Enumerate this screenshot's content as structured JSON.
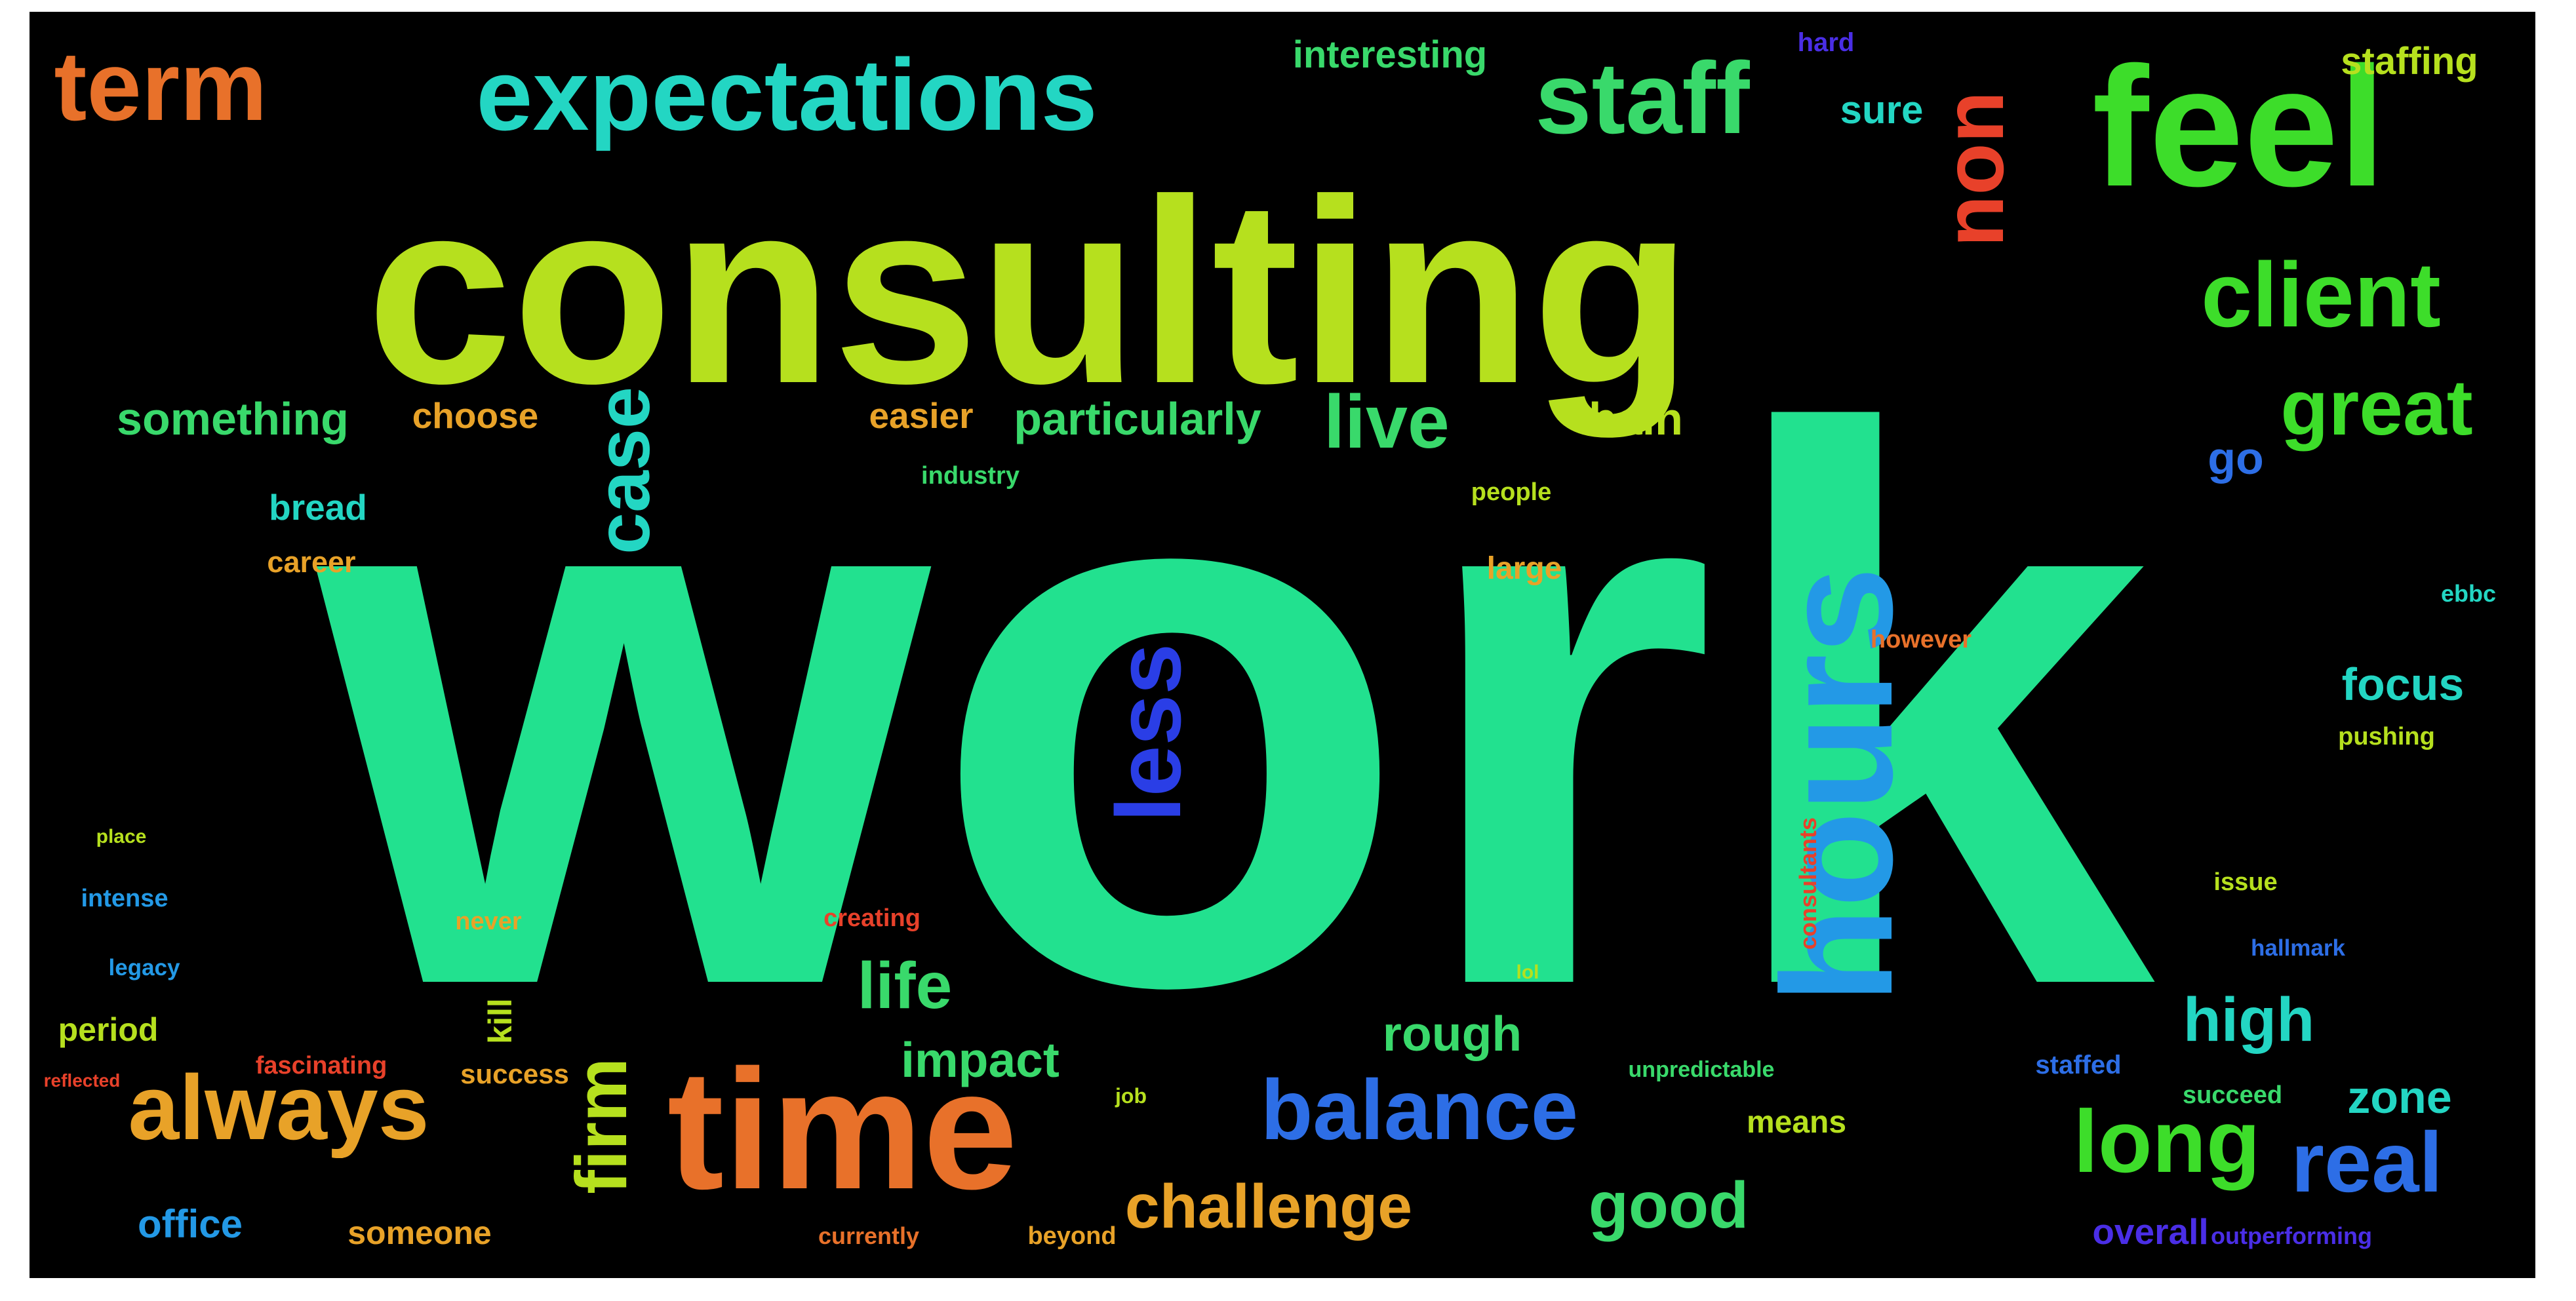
{
  "wordcloud": {
    "background": "#000000",
    "words": [
      {
        "text": "work",
        "color": "#22e18f"
      },
      {
        "text": "consulting",
        "color": "#b6e01e"
      },
      {
        "text": "hours",
        "color": "#2399e6"
      },
      {
        "text": "feel",
        "color": "#3ddd2a"
      },
      {
        "text": "time",
        "color": "#e8712a"
      },
      {
        "text": "expectations",
        "color": "#23d6c3"
      },
      {
        "text": "staff",
        "color": "#39d96b"
      },
      {
        "text": "term",
        "color": "#e8712a"
      },
      {
        "text": "client",
        "color": "#3ddd2a"
      },
      {
        "text": "non",
        "color": "#e8412a"
      },
      {
        "text": "always",
        "color": "#e8a228"
      },
      {
        "text": "balance",
        "color": "#2d6ee6"
      },
      {
        "text": "long",
        "color": "#3ddd2a"
      },
      {
        "text": "real",
        "color": "#2d6ee6"
      },
      {
        "text": "less",
        "color": "#2a3ee6"
      },
      {
        "text": "great",
        "color": "#3ddd2a"
      },
      {
        "text": "case",
        "color": "#23d6c3"
      },
      {
        "text": "live",
        "color": "#39d96b"
      },
      {
        "text": "firm",
        "color": "#b6e01e"
      },
      {
        "text": "challenge",
        "color": "#e8a228"
      },
      {
        "text": "good",
        "color": "#39d96b"
      },
      {
        "text": "life",
        "color": "#39d96b"
      },
      {
        "text": "high",
        "color": "#23d6c3"
      },
      {
        "text": "impact",
        "color": "#39d96b"
      },
      {
        "text": "rough",
        "color": "#39d96b"
      },
      {
        "text": "zone",
        "color": "#23d6c3"
      },
      {
        "text": "focus",
        "color": "#23d6c3"
      },
      {
        "text": "particularly",
        "color": "#39d96b"
      },
      {
        "text": "something",
        "color": "#39d96b"
      },
      {
        "text": "choose",
        "color": "#e8a228"
      },
      {
        "text": "easier",
        "color": "#e8a228"
      },
      {
        "text": "bain",
        "color": "#b6e01e"
      },
      {
        "text": "go",
        "color": "#2d6ee6"
      },
      {
        "text": "staffing",
        "color": "#b6e01e"
      },
      {
        "text": "sure",
        "color": "#23d6c3"
      },
      {
        "text": "interesting",
        "color": "#39d96b"
      },
      {
        "text": "office",
        "color": "#2399e6"
      },
      {
        "text": "someone",
        "color": "#e8a228"
      },
      {
        "text": "overall",
        "color": "#4a2ee6"
      },
      {
        "text": "bread",
        "color": "#23d6c3"
      },
      {
        "text": "career",
        "color": "#e8a228"
      },
      {
        "text": "period",
        "color": "#b6e01e"
      },
      {
        "text": "kill",
        "color": "#b6e01e"
      },
      {
        "text": "success",
        "color": "#e8a228"
      },
      {
        "text": "fascinating",
        "color": "#e8412a"
      },
      {
        "text": "means",
        "color": "#b6e01e"
      },
      {
        "text": "large",
        "color": "#e8a228"
      },
      {
        "text": "industry",
        "color": "#39d96b"
      },
      {
        "text": "people",
        "color": "#b6e01e"
      },
      {
        "text": "however",
        "color": "#e8712a"
      },
      {
        "text": "consultants",
        "color": "#e8412a"
      },
      {
        "text": "creating",
        "color": "#e8412a"
      },
      {
        "text": "never",
        "color": "#e8a228"
      },
      {
        "text": "intense",
        "color": "#2399e6"
      },
      {
        "text": "legacy",
        "color": "#2399e6"
      },
      {
        "text": "place",
        "color": "#b6e01e"
      },
      {
        "text": "pushing",
        "color": "#b6e01e"
      },
      {
        "text": "issue",
        "color": "#b6e01e"
      },
      {
        "text": "hallmark",
        "color": "#2d6ee6"
      },
      {
        "text": "staffed",
        "color": "#2d6ee6"
      },
      {
        "text": "succeed",
        "color": "#39d96b"
      },
      {
        "text": "unpredictable",
        "color": "#39d96b"
      },
      {
        "text": "outperforming",
        "color": "#4a2ee6"
      },
      {
        "text": "beyond",
        "color": "#e8a228"
      },
      {
        "text": "currently",
        "color": "#e8712a"
      },
      {
        "text": "job",
        "color": "#b6e01e"
      },
      {
        "text": "lol",
        "color": "#b6e01e"
      },
      {
        "text": "ebbc",
        "color": "#23d6c3"
      },
      {
        "text": "hard",
        "color": "#4a2ee6"
      },
      {
        "text": "reflected",
        "color": "#e8412a"
      }
    ]
  }
}
